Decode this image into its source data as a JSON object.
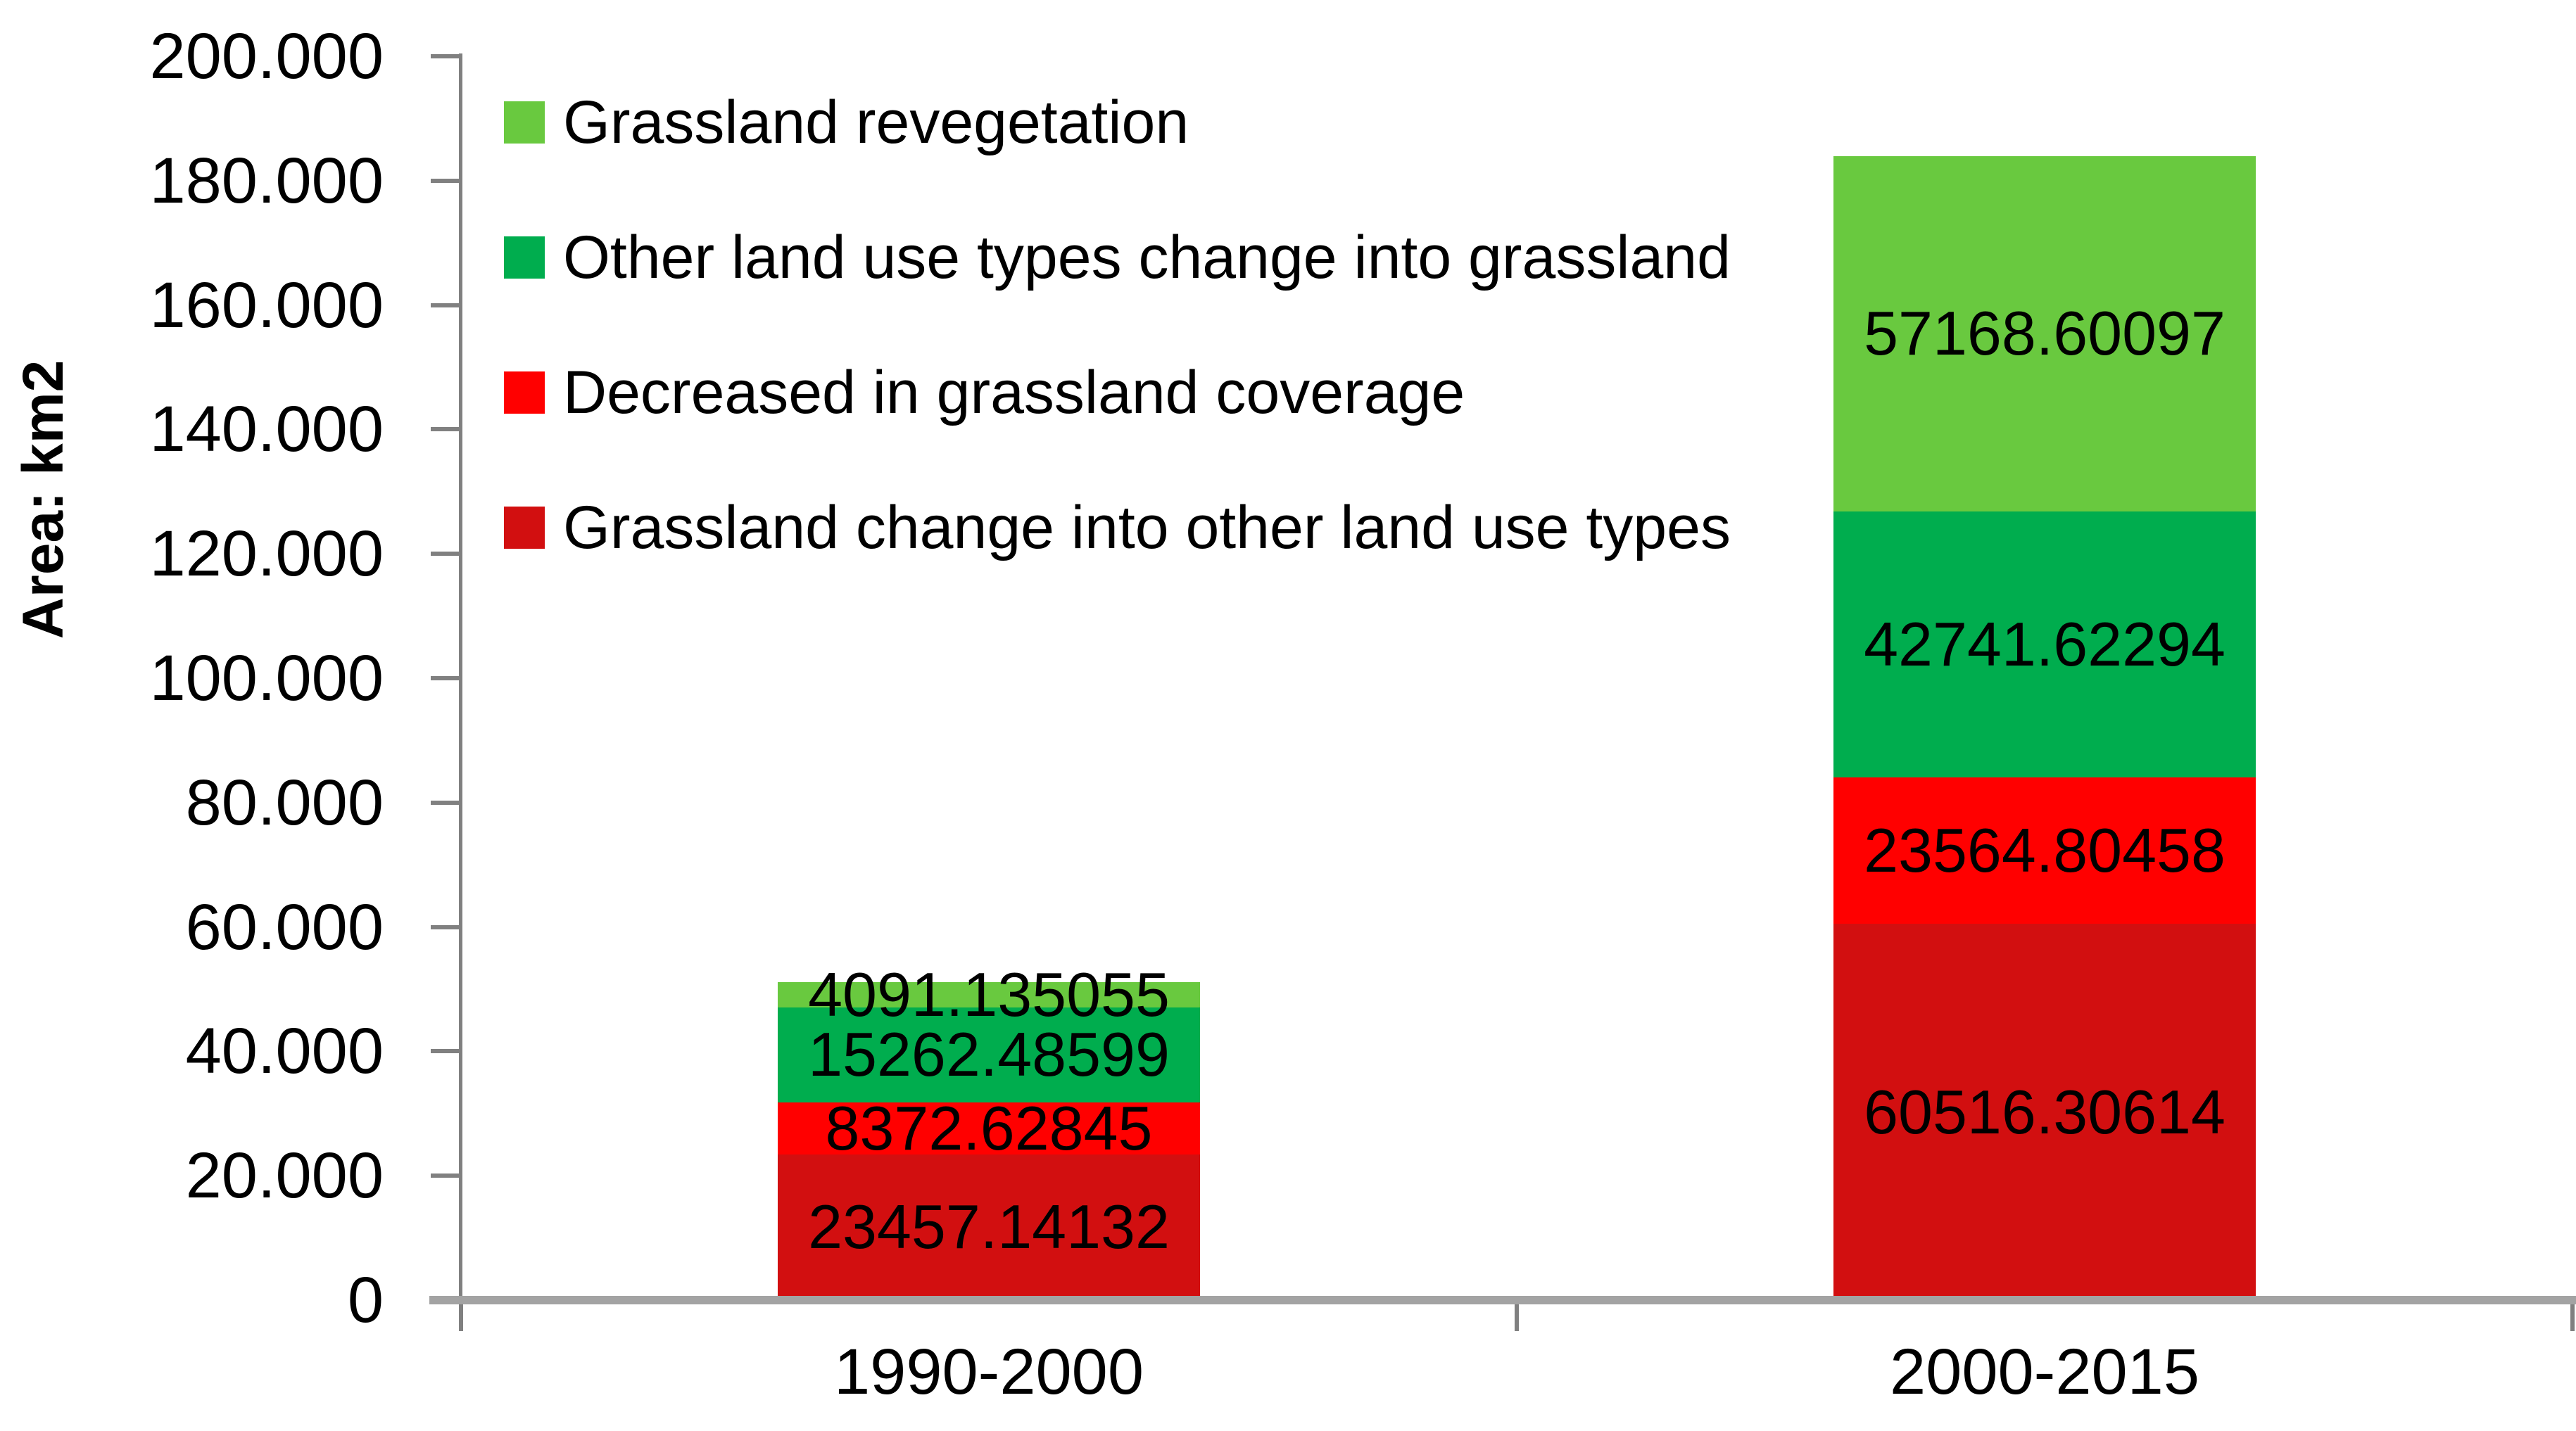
{
  "axis_title": "Area: km2",
  "chart_data": {
    "type": "bar",
    "stacked": true,
    "title": "",
    "xlabel": "",
    "ylabel": "Area: km2",
    "categories": [
      "1990-2000",
      "2000-2015"
    ],
    "series": [
      {
        "name": "Grassland change into other land use types",
        "color": "#d20f10",
        "values": [
          23457.14132,
          60516.30614
        ],
        "labels": [
          "23457.14132",
          "60516.30614"
        ]
      },
      {
        "name": "Decreased in grassland coverage",
        "color": "#ff0000",
        "values": [
          8372.62845,
          23564.80458
        ],
        "labels": [
          "8372.62845",
          "23564.80458"
        ]
      },
      {
        "name": "Other land use types change into grassland",
        "color": "#00ad4e",
        "values": [
          15262.48599,
          42741.62294
        ],
        "labels": [
          "15262.48599",
          "42741.62294"
        ]
      },
      {
        "name": "Grassland revegetation",
        "color": "#69c93f",
        "values": [
          4091.135055,
          57168.60097
        ],
        "labels": [
          "4091.135055",
          "57168.60097"
        ]
      }
    ],
    "totals": [
      51183.390815,
      183991.33463
    ],
    "ylim": [
      0,
      200000
    ],
    "y_tick_labels": [
      "200.000",
      "180.000",
      "160.000",
      "140.000",
      "120.000",
      "100.000",
      "80.000",
      "60.000",
      "40.000",
      "20.000",
      "0"
    ],
    "grid": false,
    "legend_position": "inside-top-left",
    "legend_display_order": [
      3,
      2,
      1,
      0
    ]
  },
  "style_colors": {
    "background": "#ffffff",
    "text": "#000000",
    "y_axis_line": "#808080",
    "tick_marks": "#808080",
    "x_axis_line": "#a3a3a3"
  }
}
